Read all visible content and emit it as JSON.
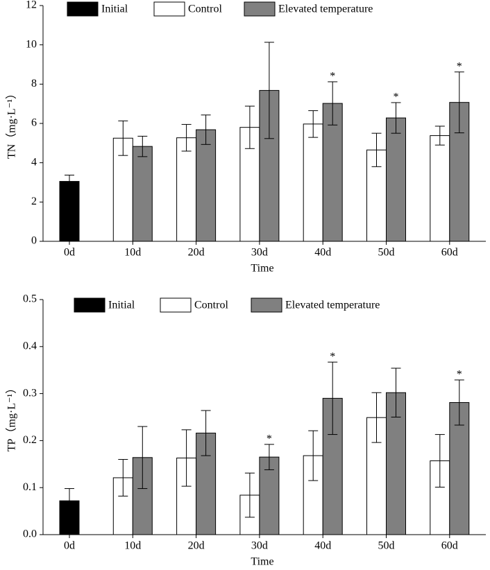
{
  "chart_data": [
    {
      "type": "bar",
      "ylabel": "TN（mg·L⁻¹）",
      "xlabel": "Time",
      "categories": [
        "0d",
        "10d",
        "20d",
        "30d",
        "40d",
        "50d",
        "60d"
      ],
      "series": [
        {
          "name": "Initial",
          "color": "#000000",
          "values": [
            3.05,
            null,
            null,
            null,
            null,
            null,
            null
          ],
          "errors": [
            0.32,
            null,
            null,
            null,
            null,
            null,
            null
          ]
        },
        {
          "name": "Control",
          "color": "#ffffff",
          "values": [
            null,
            5.25,
            5.27,
            5.8,
            5.97,
            4.65,
            5.38
          ],
          "errors": [
            null,
            0.88,
            0.68,
            1.08,
            0.68,
            0.85,
            0.48
          ]
        },
        {
          "name": "Elevated temperature",
          "color": "#808080",
          "values": [
            null,
            4.83,
            5.68,
            7.68,
            7.02,
            6.28,
            7.07
          ],
          "errors": [
            null,
            0.52,
            0.75,
            2.45,
            1.1,
            0.78,
            1.55
          ]
        }
      ],
      "annotations": [
        {
          "text": "*",
          "x": "40d"
        },
        {
          "text": "*",
          "x": "50d"
        },
        {
          "text": "*",
          "x": "60d"
        }
      ],
      "ylim": [
        0,
        12
      ],
      "yticks": [
        0,
        2,
        4,
        6,
        8,
        10,
        12
      ]
    },
    {
      "type": "bar",
      "ylabel": "TP（mg·L⁻¹）",
      "xlabel": "Time",
      "categories": [
        "0d",
        "10d",
        "20d",
        "30d",
        "40d",
        "50d",
        "60d"
      ],
      "series": [
        {
          "name": "Initial",
          "color": "#000000",
          "values": [
            0.072,
            null,
            null,
            null,
            null,
            null,
            null
          ],
          "errors": [
            0.026,
            null,
            null,
            null,
            null,
            null,
            null
          ]
        },
        {
          "name": "Control",
          "color": "#ffffff",
          "values": [
            null,
            0.121,
            0.163,
            0.084,
            0.168,
            0.249,
            0.157
          ],
          "errors": [
            null,
            0.039,
            0.06,
            0.047,
            0.053,
            0.053,
            0.056
          ]
        },
        {
          "name": "Elevated temperature",
          "color": "#808080",
          "values": [
            null,
            0.164,
            0.216,
            0.165,
            0.29,
            0.302,
            0.281
          ],
          "errors": [
            null,
            0.066,
            0.048,
            0.027,
            0.077,
            0.052,
            0.048
          ]
        }
      ],
      "annotations": [
        {
          "text": "*",
          "x": "30d"
        },
        {
          "text": "*",
          "x": "40d"
        },
        {
          "text": "*",
          "x": "60d"
        }
      ],
      "ylim": [
        0,
        0.5
      ],
      "yticks": [
        {
          "value": 0,
          "label": "0.0"
        },
        0.1,
        0.2,
        0.3,
        0.4,
        0.5
      ]
    }
  ]
}
